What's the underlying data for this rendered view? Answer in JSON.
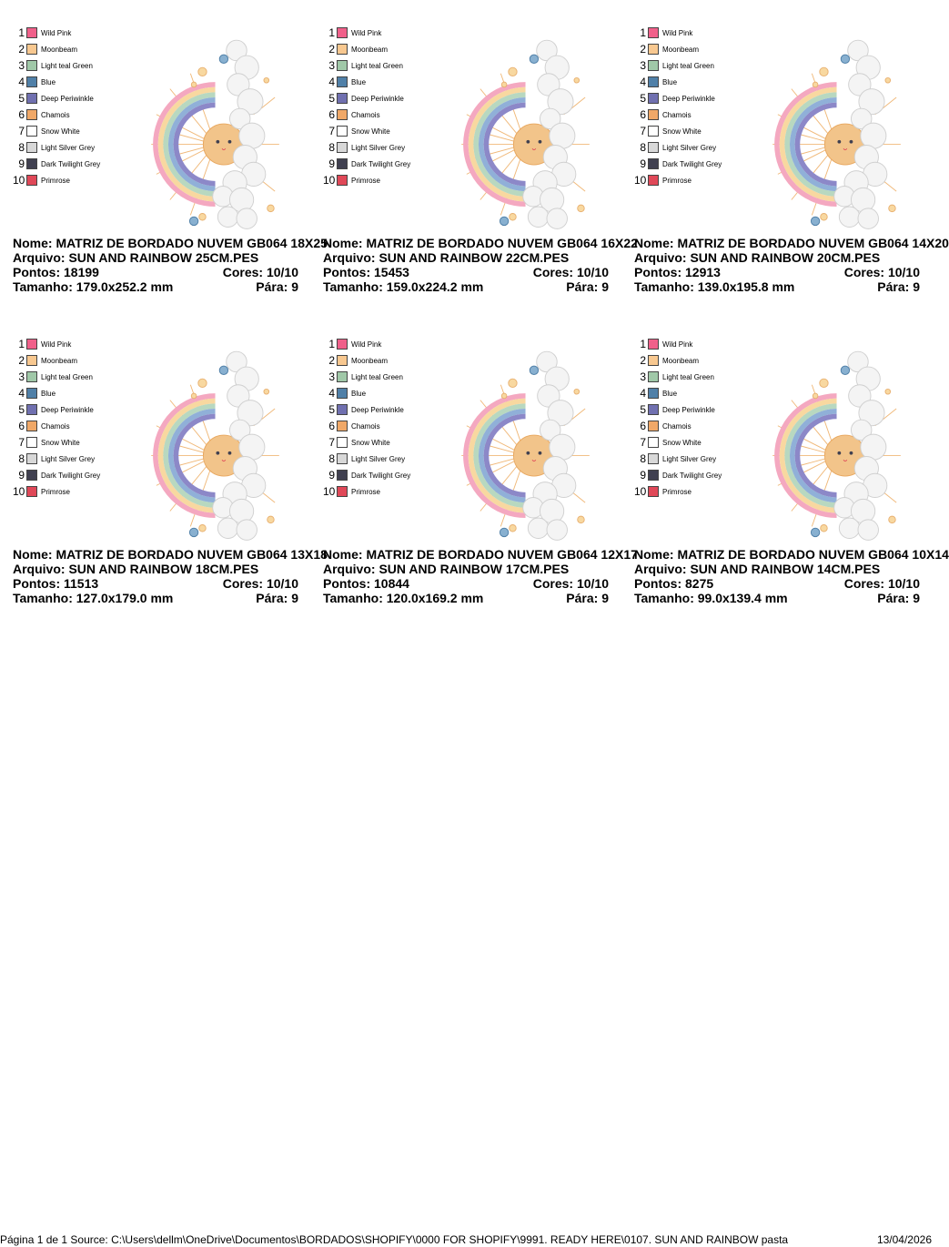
{
  "cards": [
    {
      "threads": [
        {
          "number": 1,
          "name": "Wild Pink",
          "color": "#f0608a"
        },
        {
          "number": 2,
          "name": "Moonbeam",
          "color": "#f8c890"
        },
        {
          "number": 3,
          "name": "Light teal Green",
          "color": "#a0c8a8"
        },
        {
          "number": 4,
          "name": "Blue",
          "color": "#5080a8"
        },
        {
          "number": 5,
          "name": "Deep Periwinkle",
          "color": "#7070b0"
        },
        {
          "number": 6,
          "name": "Chamois",
          "color": "#f0a868"
        },
        {
          "number": 7,
          "name": "Snow White",
          "color": "#ffffff"
        },
        {
          "number": 8,
          "name": "Light Silver Grey",
          "color": "#d8d8d8"
        },
        {
          "number": 9,
          "name": "Dark Twilight Grey",
          "color": "#404050"
        },
        {
          "number": 10,
          "name": "Primrose",
          "color": "#e04858"
        }
      ],
      "nome": "Nome: MATRIZ DE BORDADO NUVEM GB064 18X25",
      "arquivo": "Arquivo: SUN AND RAINBOW 25CM.PES",
      "pontos": "Pontos: 18199",
      "cores": "Cores: 10/10",
      "tamanho": "Tamanho: 179.0x252.2 mm",
      "para": "Pára: 9"
    },
    {
      "threads": [
        {
          "number": 1,
          "name": "Wild Pink",
          "color": "#f0608a"
        },
        {
          "number": 2,
          "name": "Moonbeam",
          "color": "#f8c890"
        },
        {
          "number": 3,
          "name": "Light teal Green",
          "color": "#a0c8a8"
        },
        {
          "number": 4,
          "name": "Blue",
          "color": "#5080a8"
        },
        {
          "number": 5,
          "name": "Deep Periwinkle",
          "color": "#7070b0"
        },
        {
          "number": 6,
          "name": "Chamois",
          "color": "#f0a868"
        },
        {
          "number": 7,
          "name": "Snow White",
          "color": "#ffffff"
        },
        {
          "number": 8,
          "name": "Light Silver Grey",
          "color": "#d8d8d8"
        },
        {
          "number": 9,
          "name": "Dark Twilight Grey",
          "color": "#404050"
        },
        {
          "number": 10,
          "name": "Primrose",
          "color": "#e04858"
        }
      ],
      "nome": "Nome: MATRIZ DE BORDADO NUVEM GB064 16X22",
      "arquivo": "Arquivo: SUN AND RAINBOW 22CM.PES",
      "pontos": "Pontos: 15453",
      "cores": "Cores: 10/10",
      "tamanho": "Tamanho: 159.0x224.2 mm",
      "para": "Pára: 9"
    },
    {
      "threads": [
        {
          "number": 1,
          "name": "Wild Pink",
          "color": "#f0608a"
        },
        {
          "number": 2,
          "name": "Moonbeam",
          "color": "#f8c890"
        },
        {
          "number": 3,
          "name": "Light teal Green",
          "color": "#a0c8a8"
        },
        {
          "number": 4,
          "name": "Blue",
          "color": "#5080a8"
        },
        {
          "number": 5,
          "name": "Deep Periwinkle",
          "color": "#7070b0"
        },
        {
          "number": 6,
          "name": "Chamois",
          "color": "#f0a868"
        },
        {
          "number": 7,
          "name": "Snow White",
          "color": "#ffffff"
        },
        {
          "number": 8,
          "name": "Light Silver Grey",
          "color": "#d8d8d8"
        },
        {
          "number": 9,
          "name": "Dark Twilight Grey",
          "color": "#404050"
        },
        {
          "number": 10,
          "name": "Primrose",
          "color": "#e04858"
        }
      ],
      "nome": "Nome: MATRIZ DE BORDADO NUVEM GB064 14X20",
      "arquivo": "Arquivo: SUN AND RAINBOW 20CM.PES",
      "pontos": "Pontos: 12913",
      "cores": "Cores: 10/10",
      "tamanho": "Tamanho: 139.0x195.8 mm",
      "para": "Pára: 9"
    },
    {
      "threads": [
        {
          "number": 1,
          "name": "Wild Pink",
          "color": "#f0608a"
        },
        {
          "number": 2,
          "name": "Moonbeam",
          "color": "#f8c890"
        },
        {
          "number": 3,
          "name": "Light teal Green",
          "color": "#a0c8a8"
        },
        {
          "number": 4,
          "name": "Blue",
          "color": "#5080a8"
        },
        {
          "number": 5,
          "name": "Deep Periwinkle",
          "color": "#7070b0"
        },
        {
          "number": 6,
          "name": "Chamois",
          "color": "#f0a868"
        },
        {
          "number": 7,
          "name": "Snow White",
          "color": "#ffffff"
        },
        {
          "number": 8,
          "name": "Light Silver Grey",
          "color": "#d8d8d8"
        },
        {
          "number": 9,
          "name": "Dark Twilight Grey",
          "color": "#404050"
        },
        {
          "number": 10,
          "name": "Primrose",
          "color": "#e04858"
        }
      ],
      "nome": "Nome: MATRIZ DE BORDADO NUVEM GB064 13X18",
      "arquivo": "Arquivo: SUN AND RAINBOW 18CM.PES",
      "pontos": "Pontos: 11513",
      "cores": "Cores: 10/10",
      "tamanho": "Tamanho: 127.0x179.0 mm",
      "para": "Pára: 9"
    },
    {
      "threads": [
        {
          "number": 1,
          "name": "Wild Pink",
          "color": "#f0608a"
        },
        {
          "number": 2,
          "name": "Moonbeam",
          "color": "#f8c890"
        },
        {
          "number": 3,
          "name": "Light teal Green",
          "color": "#a0c8a8"
        },
        {
          "number": 4,
          "name": "Blue",
          "color": "#5080a8"
        },
        {
          "number": 5,
          "name": "Deep Periwinkle",
          "color": "#7070b0"
        },
        {
          "number": 6,
          "name": "Chamois",
          "color": "#f0a868"
        },
        {
          "number": 7,
          "name": "Snow White",
          "color": "#ffffff"
        },
        {
          "number": 8,
          "name": "Light Silver Grey",
          "color": "#d8d8d8"
        },
        {
          "number": 9,
          "name": "Dark Twilight Grey",
          "color": "#404050"
        },
        {
          "number": 10,
          "name": "Primrose",
          "color": "#e04858"
        }
      ],
      "nome": "Nome: MATRIZ DE BORDADO NUVEM GB064 12X17",
      "arquivo": "Arquivo: SUN AND RAINBOW 17CM.PES",
      "pontos": "Pontos: 10844",
      "cores": "Cores: 10/10",
      "tamanho": "Tamanho: 120.0x169.2 mm",
      "para": "Pára: 9"
    },
    {
      "threads": [
        {
          "number": 1,
          "name": "Wild Pink",
          "color": "#f0608a"
        },
        {
          "number": 2,
          "name": "Moonbeam",
          "color": "#f8c890"
        },
        {
          "number": 3,
          "name": "Light teal Green",
          "color": "#a0c8a8"
        },
        {
          "number": 4,
          "name": "Blue",
          "color": "#5080a8"
        },
        {
          "number": 5,
          "name": "Deep Periwinkle",
          "color": "#7070b0"
        },
        {
          "number": 6,
          "name": "Chamois",
          "color": "#f0a868"
        },
        {
          "number": 7,
          "name": "Snow White",
          "color": "#ffffff"
        },
        {
          "number": 8,
          "name": "Light Silver Grey",
          "color": "#d8d8d8"
        },
        {
          "number": 9,
          "name": "Dark Twilight Grey",
          "color": "#404050"
        },
        {
          "number": 10,
          "name": "Primrose",
          "color": "#e04858"
        }
      ],
      "nome": "Nome: MATRIZ DE BORDADO NUVEM GB064 10X14",
      "arquivo": "Arquivo: SUN AND RAINBOW 14CM.PES",
      "pontos": "Pontos: 8275",
      "cores": "Cores: 10/10",
      "tamanho": "Tamanho: 99.0x139.4 mm",
      "para": "Pára: 9"
    }
  ],
  "footer": {
    "source": "Página 1 de 1 Source: C:\\Users\\dellm\\OneDrive\\Documentos\\BORDADOS\\SHOPIFY\\0000 FOR SHOPIFY\\9991. READY HERE\\0107. SUN AND RAINBOW pasta",
    "date": "13/04/2026"
  }
}
